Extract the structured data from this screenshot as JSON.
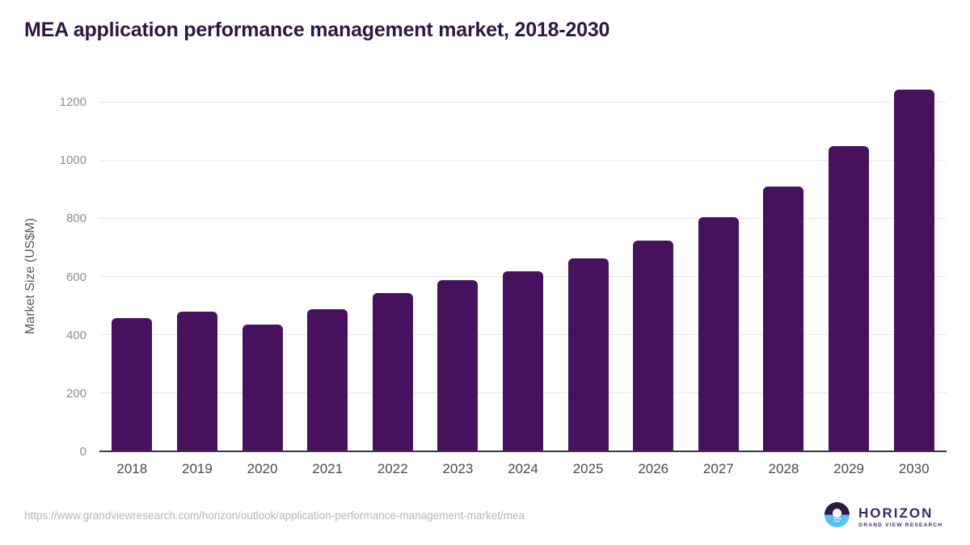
{
  "page": {
    "title": "MEA application performance management market, 2018-2030",
    "source_url": "https://www.grandviewresearch.com/horizon/outlook/application-performance-management-market/mea",
    "logo": {
      "name": "HORIZON",
      "subtitle": "GRAND VIEW RESEARCH"
    }
  },
  "chart_data": {
    "type": "bar",
    "title": "MEA application performance management market, 2018-2030",
    "categories": [
      "2018",
      "2019",
      "2020",
      "2021",
      "2022",
      "2023",
      "2024",
      "2025",
      "2026",
      "2027",
      "2028",
      "2029",
      "2030"
    ],
    "values": [
      455,
      478,
      433,
      486,
      540,
      584,
      616,
      660,
      720,
      800,
      905,
      1045,
      1240
    ],
    "xlabel": "",
    "ylabel": "Market Size (US$M)",
    "yticks": [
      0,
      200,
      400,
      600,
      800,
      1000,
      1200
    ],
    "ylim": [
      0,
      1300
    ],
    "grid": "horizontal",
    "legend": "none",
    "bar_color": "#48115e"
  },
  "colors": {
    "bar": "#48115e",
    "title_text": "#2e1745",
    "gridline": "#e7e7e7",
    "axis_line": "#383838",
    "ytick_text": "#8d8d8d",
    "xtick_text": "#4a4a4a",
    "url_text": "#b5b5b5",
    "logo_purple": "#30174a",
    "logo_blue": "#57c1ef",
    "logo_text": "#3b2a5c"
  }
}
